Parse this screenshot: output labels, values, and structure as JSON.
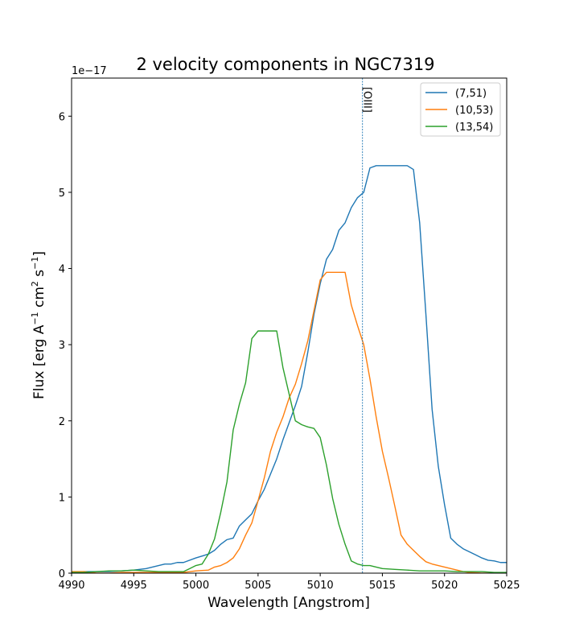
{
  "chart_data": {
    "type": "line",
    "title": "2 velocity components in NGC7319",
    "xlabel": "Wavelength [Angstrom]",
    "ylabel_parts": [
      "Flux [erg A",
      "−1",
      " cm",
      "2",
      " s",
      "−1",
      "]"
    ],
    "y_offset_text": "1e−17",
    "y_scale": 1e-17,
    "xlim": [
      4990,
      5025
    ],
    "ylim": [
      0,
      6.5
    ],
    "xticks": [
      4990,
      4995,
      5000,
      5005,
      5010,
      5015,
      5020,
      5025
    ],
    "yticks": [
      0,
      1,
      2,
      3,
      4,
      5,
      6
    ],
    "vline": {
      "x": 5013.4,
      "label": "[OIII]",
      "color": "#1f77b4"
    },
    "legend_position": "top-right",
    "series": [
      {
        "name": "(7,51)",
        "color": "#1f77b4",
        "x": [
          4990,
          4991,
          4992,
          4993,
          4994,
          4995,
          4996,
          4997,
          4997.5,
          4998,
          4998.5,
          4999,
          5000,
          5001,
          5001.5,
          5002,
          5002.5,
          5003,
          5003.5,
          5004,
          5004.5,
          5005,
          5005.5,
          5006,
          5006.5,
          5007,
          5008,
          5008.5,
          5009,
          5009.5,
          5010,
          5010.5,
          5011,
          5011.5,
          5012,
          5012.5,
          5013,
          5013.5,
          5014,
          5014.5,
          5015,
          5016,
          5017,
          5017.5,
          5018,
          5018.5,
          5019,
          5019.5,
          5020,
          5020.5,
          5021,
          5021.5,
          5022,
          5022.5,
          5023,
          5023.5,
          5024,
          5024.5,
          5025
        ],
        "values": [
          0.0,
          0.02,
          0.02,
          0.02,
          0.03,
          0.04,
          0.06,
          0.1,
          0.12,
          0.12,
          0.14,
          0.14,
          0.2,
          0.25,
          0.3,
          0.38,
          0.44,
          0.46,
          0.62,
          0.7,
          0.78,
          0.95,
          1.1,
          1.3,
          1.5,
          1.75,
          2.2,
          2.45,
          2.9,
          3.4,
          3.8,
          4.12,
          4.25,
          4.5,
          4.6,
          4.8,
          4.93,
          5.0,
          5.32,
          5.35,
          5.35,
          5.35,
          5.35,
          5.3,
          4.6,
          3.4,
          2.15,
          1.4,
          0.9,
          0.46,
          0.38,
          0.32,
          0.28,
          0.24,
          0.2,
          0.17,
          0.16,
          0.14,
          0.14
        ]
      },
      {
        "name": "(10,53)",
        "color": "#ff7f0e",
        "x": [
          4990,
          4991,
          4992,
          4993,
          4994,
          4995,
          4996,
          4997,
          4998,
          4999,
          5000,
          5001,
          5001.5,
          5002,
          5002.5,
          5003,
          5003.5,
          5004,
          5004.5,
          5005,
          5005.5,
          5006,
          5006.5,
          5007,
          5007.5,
          5008,
          5008.5,
          5009,
          5009.5,
          5010,
          5010.5,
          5011,
          5011.5,
          5012,
          5012.5,
          5013,
          5013.5,
          5014,
          5014.5,
          5015,
          5015.5,
          5016,
          5016.5,
          5017,
          5017.5,
          5018,
          5018.5,
          5019,
          5019.5,
          5020,
          5020.5,
          5021,
          5021.5,
          5022,
          5023,
          5024,
          5025
        ],
        "values": [
          0.02,
          0.02,
          0.0,
          0.0,
          0.01,
          0.01,
          0.01,
          0.01,
          0.01,
          0.01,
          0.03,
          0.04,
          0.08,
          0.1,
          0.14,
          0.2,
          0.32,
          0.5,
          0.66,
          0.95,
          1.25,
          1.6,
          1.85,
          2.05,
          2.3,
          2.48,
          2.75,
          3.05,
          3.45,
          3.85,
          3.95,
          3.95,
          3.95,
          3.95,
          3.52,
          3.25,
          3.0,
          2.55,
          2.05,
          1.6,
          1.25,
          0.88,
          0.5,
          0.38,
          0.3,
          0.22,
          0.15,
          0.12,
          0.1,
          0.08,
          0.06,
          0.04,
          0.02,
          0.01,
          0.0,
          0.0,
          0.0
        ]
      },
      {
        "name": "(13,54)",
        "color": "#2ca02c",
        "x": [
          4990,
          4991,
          4992,
          4993,
          4994,
          4995,
          4996,
          4997,
          4998,
          4999,
          4999.5,
          5000,
          5000.5,
          5001,
          5001.5,
          5002,
          5002.5,
          5003,
          5003.5,
          5004,
          5004.5,
          5005,
          5005.5,
          5006,
          5006.5,
          5007,
          5007.5,
          5008,
          5008.5,
          5009,
          5009.5,
          5010,
          5010.5,
          5011,
          5011.5,
          5012,
          5012.5,
          5013,
          5013.5,
          5014,
          5014.5,
          5015,
          5016,
          5017,
          5018,
          5019,
          5020,
          5021,
          5022,
          5023,
          5024,
          5025
        ],
        "values": [
          0.01,
          0.01,
          0.02,
          0.03,
          0.03,
          0.04,
          0.03,
          0.02,
          0.02,
          0.02,
          0.06,
          0.1,
          0.12,
          0.25,
          0.45,
          0.8,
          1.2,
          1.88,
          2.22,
          2.5,
          3.08,
          3.18,
          3.18,
          3.18,
          3.18,
          2.7,
          2.35,
          2.0,
          1.95,
          1.92,
          1.9,
          1.78,
          1.42,
          0.98,
          0.64,
          0.38,
          0.16,
          0.12,
          0.1,
          0.1,
          0.08,
          0.06,
          0.05,
          0.04,
          0.03,
          0.03,
          0.03,
          0.02,
          0.02,
          0.02,
          0.01,
          0.01
        ]
      }
    ]
  }
}
